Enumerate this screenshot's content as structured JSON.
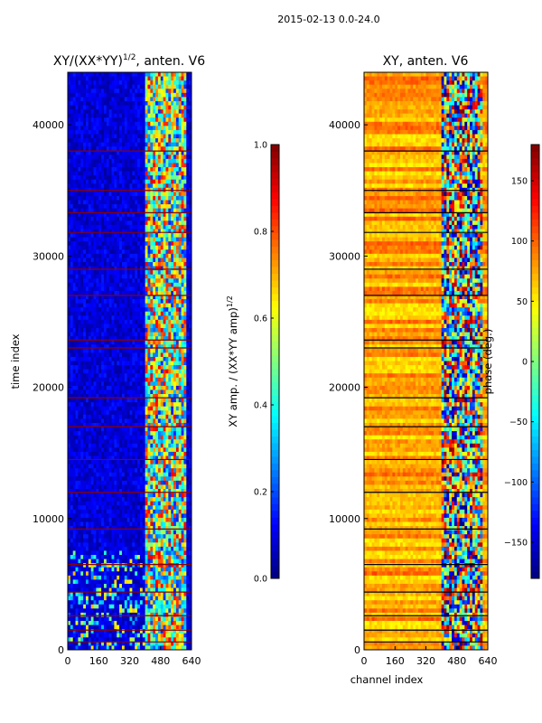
{
  "suptitle": "2015-02-13 0.0-24.0",
  "chart_data": [
    {
      "type": "heatmap",
      "title_main": "XY/(XX*YY)",
      "title_exp": "1/2",
      "title_tail": ", anten. V6",
      "xlabel": "",
      "ylabel": "time index",
      "xlim": [
        0,
        640
      ],
      "ylim": [
        0,
        44000
      ],
      "x_ticks": [
        0,
        160,
        320,
        480,
        640
      ],
      "y_ticks": [
        0,
        10000,
        20000,
        30000,
        40000
      ],
      "colormap": "jet",
      "value_range": [
        0.0,
        1.0
      ],
      "colorbar": {
        "label_main": "XY amp. / (XX*YY amp)",
        "label_exp": "1/2",
        "ticks": [
          0.0,
          0.2,
          0.4,
          0.6,
          0.8,
          1.0
        ],
        "tick_labels": [
          "0.0",
          "0.2",
          "0.4",
          "0.6",
          "0.8",
          "1.0"
        ]
      },
      "regions": [
        {
          "channels": [
            0,
            400
          ],
          "description": "low coherence",
          "typical_value": 0.05
        },
        {
          "channels": [
            400,
            620
          ],
          "description": "variable coherence",
          "value_range": [
            0.1,
            0.9
          ]
        },
        {
          "channels": [
            620,
            640
          ],
          "description": "low coherence",
          "typical_value": 0.1
        }
      ],
      "flagged_rows_approx": [
        600,
        1500,
        2600,
        4400,
        6500,
        9200,
        12000,
        14500,
        17000,
        19200,
        23000,
        23600,
        27000,
        29000,
        31800,
        33300,
        35000,
        38000
      ]
    },
    {
      "type": "heatmap",
      "title": "XY, anten. V6",
      "xlabel": "channel index",
      "ylabel": "",
      "xlim": [
        0,
        640
      ],
      "ylim": [
        0,
        44000
      ],
      "x_ticks": [
        0,
        160,
        320,
        480,
        640
      ],
      "y_ticks": [
        0,
        10000,
        20000,
        30000,
        40000
      ],
      "colormap": "jet",
      "value_range": [
        -180,
        180
      ],
      "colorbar": {
        "label": "phase (deg.)",
        "ticks": [
          -150,
          -100,
          -50,
          0,
          50,
          100,
          150
        ],
        "tick_labels": [
          "−150",
          "−100",
          "−50",
          "0",
          "50",
          "100",
          "150"
        ]
      },
      "regions": [
        {
          "channels": [
            0,
            400
          ],
          "description": "phase mostly positive",
          "value_range": [
            40,
            120
          ]
        },
        {
          "channels": [
            400,
            620
          ],
          "description": "phase wraps",
          "value_range": [
            -180,
            180
          ]
        },
        {
          "channels": [
            620,
            640
          ],
          "description": "phase mostly positive",
          "value_range": [
            40,
            120
          ]
        }
      ],
      "flagged_rows_approx": [
        600,
        1500,
        2600,
        4400,
        6500,
        9200,
        12000,
        14500,
        17000,
        19200,
        23000,
        23600,
        27000,
        29000,
        31800,
        33300,
        35000,
        38000
      ]
    }
  ]
}
